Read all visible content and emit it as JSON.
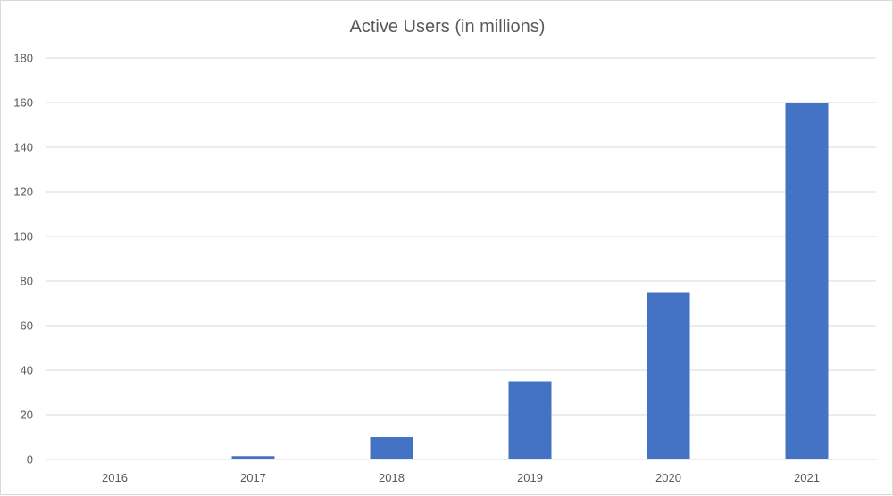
{
  "chart_data": {
    "type": "bar",
    "title": "Active Users (in millions)",
    "xlabel": "",
    "ylabel": "",
    "categories": [
      "2016",
      "2017",
      "2018",
      "2019",
      "2020",
      "2021"
    ],
    "values": [
      0.3,
      1.5,
      10,
      35,
      75,
      160
    ],
    "ylim": [
      0,
      180
    ],
    "yticks": [
      0,
      20,
      40,
      60,
      80,
      100,
      120,
      140,
      160,
      180
    ],
    "grid": true,
    "legend": "none",
    "colors": {
      "bar": "#4472C4",
      "grid": "#d9d9d9",
      "text": "#595959"
    }
  }
}
